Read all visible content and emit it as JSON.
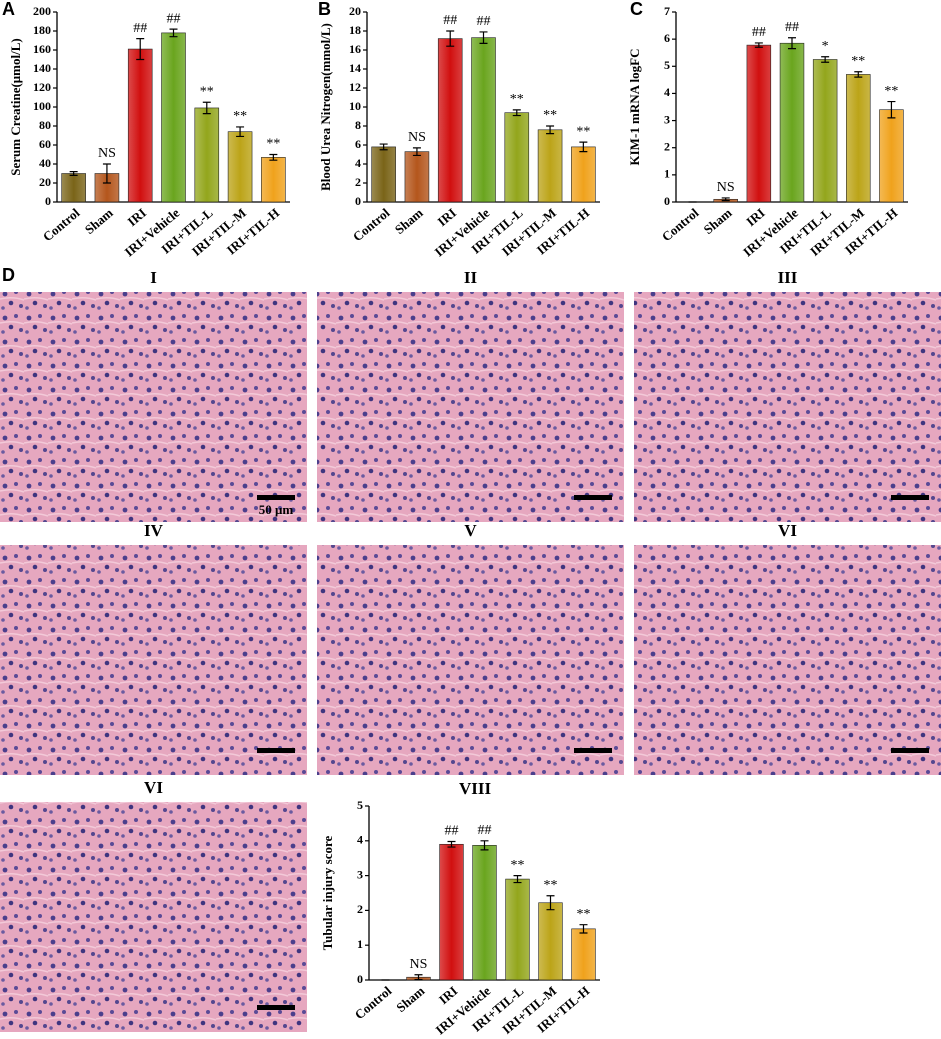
{
  "chart_data": [
    {
      "type": "bar",
      "panel": "A",
      "ylabel": "Serum Creatine(μmol/L)",
      "categories": [
        "Control",
        "Sham",
        "IRI",
        "IRI+Vehicle",
        "IRI+TIL-L",
        "IRI+TIL-M",
        "IRI+TIL-H"
      ],
      "values": [
        30,
        30,
        161,
        178,
        99,
        74,
        47
      ],
      "errors": [
        2,
        10,
        11,
        4,
        6,
        5,
        3
      ],
      "annotations": [
        null,
        "NS",
        "##",
        "##",
        "**",
        "**",
        "**"
      ],
      "colors": [
        "#7a6418",
        "#b4561c",
        "#d10f0f",
        "#6aa51e",
        "#93a61c",
        "#bca418",
        "#f0a21c"
      ],
      "ylim": [
        0,
        200
      ],
      "yticks": [
        0,
        20,
        40,
        60,
        80,
        100,
        120,
        140,
        160,
        180,
        200
      ]
    },
    {
      "type": "bar",
      "panel": "B",
      "ylabel": "Blood Urea Nitrogen(mmol/L)",
      "categories": [
        "Control",
        "Sham",
        "IRI",
        "IRI+Vehicle",
        "IRI+TIL-L",
        "IRI+TIL-M",
        "IRI+TIL-H"
      ],
      "values": [
        5.8,
        5.3,
        17.2,
        17.3,
        9.4,
        7.6,
        5.8
      ],
      "errors": [
        0.3,
        0.4,
        0.8,
        0.6,
        0.3,
        0.4,
        0.5
      ],
      "annotations": [
        null,
        "NS",
        "##",
        "##",
        "**",
        "**",
        "**"
      ],
      "colors": [
        "#7a6418",
        "#b4561c",
        "#d10f0f",
        "#6aa51e",
        "#93a61c",
        "#bca418",
        "#f0a21c"
      ],
      "ylim": [
        0,
        20
      ],
      "yticks": [
        0,
        2,
        4,
        6,
        8,
        10,
        12,
        14,
        16,
        18,
        20
      ]
    },
    {
      "type": "bar",
      "panel": "C",
      "ylabel": "KIM-1 mRNA logFC",
      "categories": [
        "Control",
        "Sham",
        "IRI",
        "IRI+Vehicle",
        "IRI+TIL-L",
        "IRI+TIL-M",
        "IRI+TIL-H"
      ],
      "values": [
        0,
        0.1,
        5.78,
        5.85,
        5.25,
        4.7,
        3.4
      ],
      "errors": [
        0,
        0.05,
        0.08,
        0.2,
        0.1,
        0.1,
        0.3
      ],
      "annotations": [
        null,
        "NS",
        "##",
        "##",
        "*",
        "**",
        "**"
      ],
      "colors": [
        "#7a6418",
        "#b4561c",
        "#d10f0f",
        "#6aa51e",
        "#93a61c",
        "#bca418",
        "#f0a21c"
      ],
      "ylim": [
        0,
        7
      ],
      "yticks": [
        0,
        1,
        2,
        3,
        4,
        5,
        6,
        7
      ]
    },
    {
      "type": "bar",
      "title": "VIII",
      "ylabel": "Tubular injury score",
      "categories": [
        "Control",
        "Sham",
        "IRI",
        "IRI+Vehicle",
        "IRI+TIL-L",
        "IRI+TIL-M",
        "IRI+TIL-H"
      ],
      "values": [
        0,
        0.08,
        3.9,
        3.87,
        2.9,
        2.22,
        1.47
      ],
      "errors": [
        0,
        0.07,
        0.08,
        0.13,
        0.1,
        0.2,
        0.12
      ],
      "annotations": [
        null,
        "NS",
        "##",
        "##",
        "**",
        "**",
        "**"
      ],
      "colors": [
        "#7a6418",
        "#b4561c",
        "#d10f0f",
        "#6aa51e",
        "#93a61c",
        "#bca418",
        "#f0a21c"
      ],
      "ylim": [
        0,
        5
      ],
      "yticks": [
        0,
        1,
        2,
        3,
        4,
        5
      ]
    }
  ],
  "images": {
    "panel": "D",
    "panels": [
      "I",
      "II",
      "III",
      "IV",
      "V",
      "VI",
      "VI"
    ],
    "scale_label": "50 μm"
  }
}
